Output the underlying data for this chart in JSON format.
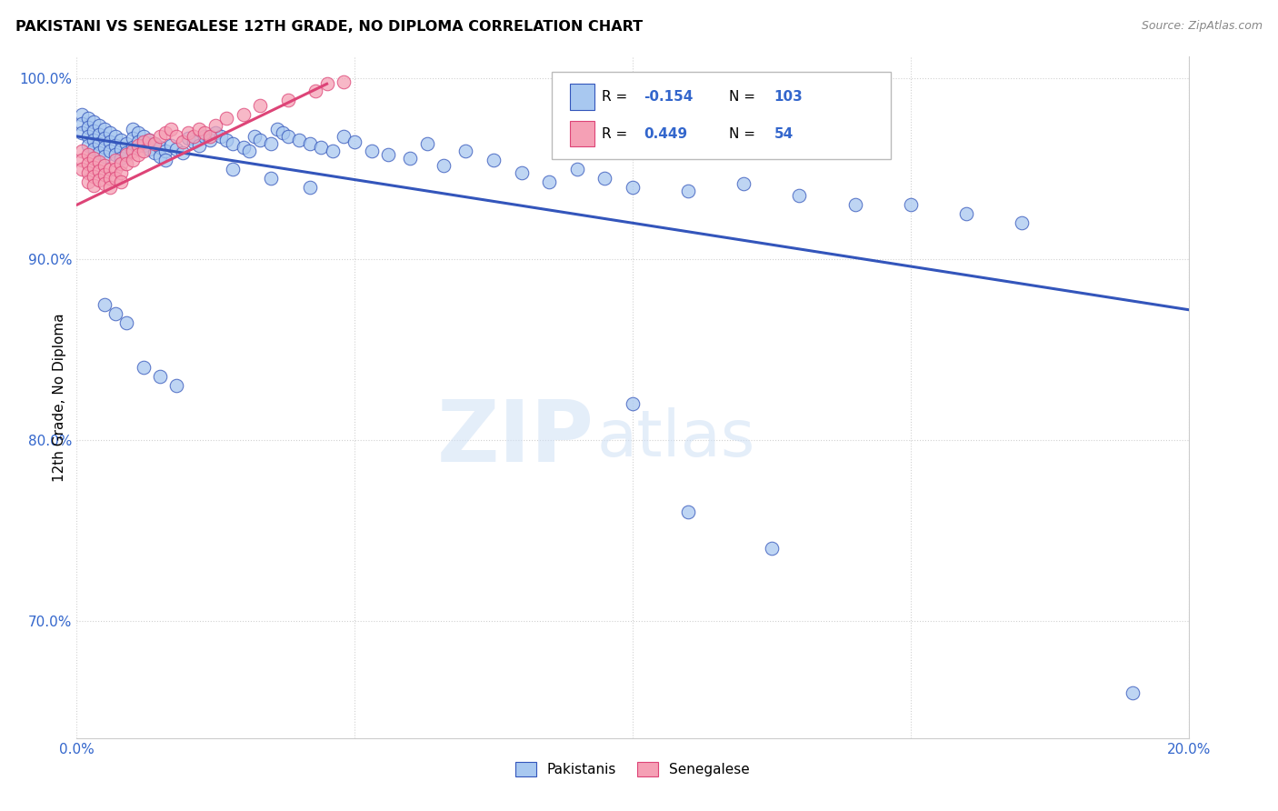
{
  "title": "PAKISTANI VS SENEGALESE 12TH GRADE, NO DIPLOMA CORRELATION CHART",
  "source": "Source: ZipAtlas.com",
  "ylabel": "12th Grade, No Diploma",
  "x_min": 0.0,
  "x_max": 0.2,
  "y_min": 0.635,
  "y_max": 1.012,
  "y_ticks": [
    0.7,
    0.8,
    0.9,
    1.0
  ],
  "y_tick_labels": [
    "70.0%",
    "80.0%",
    "90.0%",
    "100.0%"
  ],
  "pakistani_color": "#a8c8f0",
  "senegalese_color": "#f5a0b5",
  "trend_pakistani_color": "#3355bb",
  "trend_senegalese_color": "#dd4477",
  "pak_trend_x": [
    0.0,
    0.2
  ],
  "pak_trend_y": [
    0.968,
    0.872
  ],
  "sen_trend_x": [
    0.0,
    0.045
  ],
  "sen_trend_y": [
    0.93,
    0.997
  ],
  "legend_r_pak": "-0.154",
  "legend_n_pak": "103",
  "legend_r_sen": "0.449",
  "legend_n_sen": "54",
  "watermark_zip": "ZIP",
  "watermark_atlas": "atlas",
  "pakistani_x": [
    0.001,
    0.001,
    0.001,
    0.002,
    0.002,
    0.002,
    0.002,
    0.003,
    0.003,
    0.003,
    0.003,
    0.004,
    0.004,
    0.004,
    0.004,
    0.005,
    0.005,
    0.005,
    0.005,
    0.006,
    0.006,
    0.006,
    0.007,
    0.007,
    0.007,
    0.008,
    0.008,
    0.008,
    0.009,
    0.009,
    0.01,
    0.01,
    0.01,
    0.011,
    0.011,
    0.012,
    0.012,
    0.013,
    0.013,
    0.014,
    0.014,
    0.015,
    0.015,
    0.016,
    0.016,
    0.017,
    0.018,
    0.019,
    0.02,
    0.021,
    0.022,
    0.023,
    0.024,
    0.025,
    0.026,
    0.027,
    0.028,
    0.03,
    0.031,
    0.032,
    0.033,
    0.035,
    0.036,
    0.037,
    0.038,
    0.04,
    0.042,
    0.044,
    0.046,
    0.048,
    0.05,
    0.053,
    0.056,
    0.06,
    0.063,
    0.066,
    0.07,
    0.075,
    0.08,
    0.085,
    0.09,
    0.095,
    0.1,
    0.11,
    0.12,
    0.13,
    0.14,
    0.15,
    0.16,
    0.17,
    0.028,
    0.035,
    0.042,
    0.1,
    0.11,
    0.125,
    0.005,
    0.007,
    0.009,
    0.012,
    0.015,
    0.018,
    0.19
  ],
  "pakistani_y": [
    0.98,
    0.975,
    0.97,
    0.978,
    0.973,
    0.968,
    0.963,
    0.976,
    0.971,
    0.966,
    0.961,
    0.974,
    0.969,
    0.964,
    0.959,
    0.972,
    0.967,
    0.962,
    0.957,
    0.97,
    0.965,
    0.96,
    0.968,
    0.963,
    0.958,
    0.966,
    0.961,
    0.956,
    0.964,
    0.959,
    0.972,
    0.967,
    0.962,
    0.97,
    0.965,
    0.968,
    0.963,
    0.966,
    0.961,
    0.964,
    0.959,
    0.962,
    0.957,
    0.96,
    0.955,
    0.963,
    0.961,
    0.959,
    0.967,
    0.965,
    0.963,
    0.968,
    0.966,
    0.97,
    0.968,
    0.966,
    0.964,
    0.962,
    0.96,
    0.968,
    0.966,
    0.964,
    0.972,
    0.97,
    0.968,
    0.966,
    0.964,
    0.962,
    0.96,
    0.968,
    0.965,
    0.96,
    0.958,
    0.956,
    0.964,
    0.952,
    0.96,
    0.955,
    0.948,
    0.943,
    0.95,
    0.945,
    0.94,
    0.938,
    0.942,
    0.935,
    0.93,
    0.93,
    0.925,
    0.92,
    0.95,
    0.945,
    0.94,
    0.82,
    0.76,
    0.74,
    0.875,
    0.87,
    0.865,
    0.84,
    0.835,
    0.83,
    0.66
  ],
  "senegalese_x": [
    0.001,
    0.001,
    0.001,
    0.002,
    0.002,
    0.002,
    0.002,
    0.003,
    0.003,
    0.003,
    0.003,
    0.004,
    0.004,
    0.004,
    0.005,
    0.005,
    0.005,
    0.006,
    0.006,
    0.006,
    0.007,
    0.007,
    0.007,
    0.008,
    0.008,
    0.008,
    0.009,
    0.009,
    0.01,
    0.01,
    0.011,
    0.011,
    0.012,
    0.012,
    0.013,
    0.014,
    0.015,
    0.016,
    0.017,
    0.018,
    0.019,
    0.02,
    0.021,
    0.022,
    0.023,
    0.024,
    0.025,
    0.027,
    0.03,
    0.033,
    0.038,
    0.043,
    0.045,
    0.048
  ],
  "senegalese_y": [
    0.96,
    0.955,
    0.95,
    0.958,
    0.953,
    0.948,
    0.943,
    0.956,
    0.951,
    0.946,
    0.941,
    0.954,
    0.949,
    0.944,
    0.952,
    0.947,
    0.942,
    0.95,
    0.945,
    0.94,
    0.955,
    0.95,
    0.945,
    0.953,
    0.948,
    0.943,
    0.958,
    0.953,
    0.96,
    0.955,
    0.963,
    0.958,
    0.965,
    0.96,
    0.966,
    0.964,
    0.968,
    0.97,
    0.972,
    0.968,
    0.965,
    0.97,
    0.968,
    0.972,
    0.97,
    0.968,
    0.974,
    0.978,
    0.98,
    0.985,
    0.988,
    0.993,
    0.997,
    0.998
  ]
}
